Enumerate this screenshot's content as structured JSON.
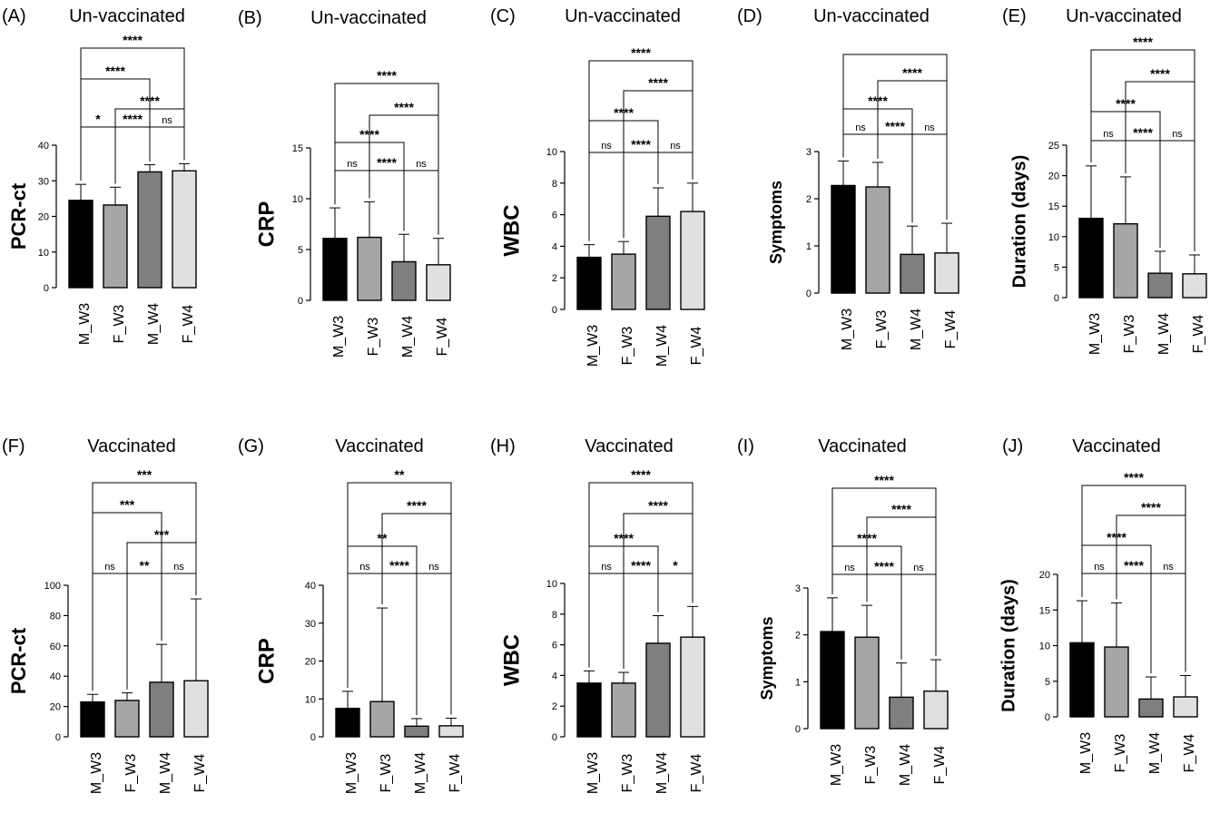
{
  "figure": {
    "bar_colors": [
      "#000000",
      "#a6a6a6",
      "#7f7f7f",
      "#e0e0e0"
    ]
  },
  "chart_data": [
    {
      "letter": "(A)",
      "title": "Un-vaccinated",
      "ylabel": "PCR-ct",
      "type": "bar",
      "categories": [
        "M_W3",
        "F_W3",
        "M_W4",
        "F_W4"
      ],
      "values": [
        24.5,
        23.2,
        32.5,
        32.8
      ],
      "errors": [
        4.5,
        5,
        2,
        2
      ],
      "yticks": [
        0,
        10,
        20,
        30,
        40
      ],
      "ylim": [
        0,
        40
      ],
      "comparisons": [
        {
          "from": 0,
          "to": 3,
          "label": "****"
        },
        {
          "from": 0,
          "to": 2,
          "label": "****"
        },
        {
          "from": 1,
          "to": 3,
          "label": "****"
        },
        {
          "from": 0,
          "to": 1,
          "label": "*"
        },
        {
          "from": 1,
          "to": 2,
          "label": "****"
        },
        {
          "from": 2,
          "to": 3,
          "label": "ns"
        }
      ]
    },
    {
      "letter": "(B)",
      "title": "Un-vaccinated",
      "ylabel": "CRP",
      "type": "bar",
      "categories": [
        "M_W3",
        "F_W3",
        "M_W4",
        "F_W4"
      ],
      "values": [
        6.1,
        6.2,
        3.8,
        3.5
      ],
      "errors": [
        3,
        3.5,
        2.7,
        2.6
      ],
      "yticks": [
        0,
        5,
        10,
        15
      ],
      "ylim": [
        0,
        15
      ],
      "comparisons": [
        {
          "from": 0,
          "to": 3,
          "label": "****"
        },
        {
          "from": 1,
          "to": 3,
          "label": "****"
        },
        {
          "from": 0,
          "to": 2,
          "label": "****"
        },
        {
          "from": 0,
          "to": 1,
          "label": "ns"
        },
        {
          "from": 1,
          "to": 2,
          "label": "****"
        },
        {
          "from": 2,
          "to": 3,
          "label": "ns"
        }
      ]
    },
    {
      "letter": "(C)",
      "title": "Un-vaccinated",
      "ylabel": "WBC",
      "type": "bar",
      "categories": [
        "M_W3",
        "F_W3",
        "M_W4",
        "F_W4"
      ],
      "values": [
        3.3,
        3.5,
        5.9,
        6.2
      ],
      "errors": [
        0.8,
        0.8,
        1.8,
        1.8
      ],
      "yticks": [
        0,
        2,
        4,
        6,
        8,
        10
      ],
      "ylim": [
        0,
        10
      ],
      "comparisons": [
        {
          "from": 0,
          "to": 3,
          "label": "****"
        },
        {
          "from": 1,
          "to": 3,
          "label": "****"
        },
        {
          "from": 0,
          "to": 2,
          "label": "****"
        },
        {
          "from": 0,
          "to": 1,
          "label": "ns"
        },
        {
          "from": 1,
          "to": 2,
          "label": "****"
        },
        {
          "from": 2,
          "to": 3,
          "label": "ns"
        }
      ]
    },
    {
      "letter": "(D)",
      "title": "Un-vaccinated",
      "ylabel": "Symptoms",
      "type": "bar",
      "categories": [
        "M_W3",
        "F_W3",
        "M_W4",
        "F_W4"
      ],
      "values": [
        2.28,
        2.25,
        0.82,
        0.85
      ],
      "errors": [
        0.52,
        0.52,
        0.6,
        0.63
      ],
      "yticks": [
        0,
        1,
        2,
        3
      ],
      "ylim": [
        0,
        3
      ],
      "comparisons": [
        {
          "from": 0,
          "to": 3,
          "label": ""
        },
        {
          "from": 1,
          "to": 3,
          "label": "****"
        },
        {
          "from": 0,
          "to": 2,
          "label": "****"
        },
        {
          "from": 0,
          "to": 1,
          "label": "ns"
        },
        {
          "from": 1,
          "to": 2,
          "label": "****"
        },
        {
          "from": 2,
          "to": 3,
          "label": "ns"
        }
      ]
    },
    {
      "letter": "(E)",
      "title": "Un-vaccinated",
      "ylabel": "Duration (days)",
      "type": "bar",
      "categories": [
        "M_W3",
        "F_W3",
        "M_W4",
        "F_W4"
      ],
      "values": [
        13,
        12.1,
        4,
        3.9
      ],
      "errors": [
        8.6,
        7.7,
        3.6,
        3.1
      ],
      "yticks": [
        0,
        5,
        10,
        15,
        20,
        25
      ],
      "ylim": [
        0,
        25
      ],
      "comparisons": [
        {
          "from": 0,
          "to": 3,
          "label": "****"
        },
        {
          "from": 1,
          "to": 3,
          "label": "****"
        },
        {
          "from": 0,
          "to": 2,
          "label": "****"
        },
        {
          "from": 0,
          "to": 1,
          "label": "ns"
        },
        {
          "from": 1,
          "to": 2,
          "label": "****"
        },
        {
          "from": 2,
          "to": 3,
          "label": "ns"
        }
      ]
    },
    {
      "letter": "(F)",
      "title": "Vaccinated",
      "ylabel": "PCR-ct",
      "type": "bar",
      "categories": [
        "M_W3",
        "F_W3",
        "M_W4",
        "F_W4"
      ],
      "values": [
        23,
        24,
        36,
        37
      ],
      "errors": [
        5,
        5,
        25,
        54
      ],
      "yticks": [
        0,
        20,
        40,
        60,
        80,
        100
      ],
      "ylim": [
        0,
        100
      ],
      "comparisons": [
        {
          "from": 0,
          "to": 3,
          "label": "***"
        },
        {
          "from": 0,
          "to": 2,
          "label": "***"
        },
        {
          "from": 1,
          "to": 3,
          "label": "***"
        },
        {
          "from": 0,
          "to": 1,
          "label": "ns"
        },
        {
          "from": 1,
          "to": 2,
          "label": "**"
        },
        {
          "from": 2,
          "to": 3,
          "label": "ns"
        }
      ]
    },
    {
      "letter": "(G)",
      "title": "Vaccinated",
      "ylabel": "CRP",
      "type": "bar",
      "categories": [
        "M_W3",
        "F_W3",
        "M_W4",
        "F_W4"
      ],
      "values": [
        7.5,
        9.3,
        2.8,
        2.9
      ],
      "errors": [
        4.5,
        24.7,
        2,
        2
      ],
      "yticks": [
        0,
        10,
        20,
        30,
        40
      ],
      "ylim": [
        0,
        40
      ],
      "comparisons": [
        {
          "from": 0,
          "to": 3,
          "label": "**"
        },
        {
          "from": 1,
          "to": 3,
          "label": "****"
        },
        {
          "from": 0,
          "to": 2,
          "label": "**"
        },
        {
          "from": 0,
          "to": 1,
          "label": "ns"
        },
        {
          "from": 1,
          "to": 2,
          "label": "****"
        },
        {
          "from": 2,
          "to": 3,
          "label": "ns"
        }
      ]
    },
    {
      "letter": "(H)",
      "title": "Vaccinated",
      "ylabel": "WBC",
      "type": "bar",
      "categories": [
        "M_W3",
        "F_W3",
        "M_W4",
        "F_W4"
      ],
      "values": [
        3.5,
        3.5,
        6.1,
        6.5
      ],
      "errors": [
        0.8,
        0.7,
        1.8,
        2
      ],
      "yticks": [
        0,
        2,
        4,
        6,
        8,
        10
      ],
      "ylim": [
        0,
        10
      ],
      "comparisons": [
        {
          "from": 0,
          "to": 3,
          "label": "****"
        },
        {
          "from": 1,
          "to": 3,
          "label": "****"
        },
        {
          "from": 0,
          "to": 2,
          "label": "****"
        },
        {
          "from": 0,
          "to": 1,
          "label": "ns"
        },
        {
          "from": 1,
          "to": 2,
          "label": "****"
        },
        {
          "from": 2,
          "to": 3,
          "label": "*"
        }
      ]
    },
    {
      "letter": "(I)",
      "title": "Vaccinated",
      "ylabel": "Symptoms",
      "type": "bar",
      "categories": [
        "M_W3",
        "F_W3",
        "M_W4",
        "F_W4"
      ],
      "values": [
        2.07,
        1.95,
        0.67,
        0.8
      ],
      "errors": [
        0.72,
        0.68,
        0.73,
        0.67
      ],
      "yticks": [
        0,
        1,
        2,
        3
      ],
      "ylim": [
        0,
        3
      ],
      "comparisons": [
        {
          "from": 0,
          "to": 3,
          "label": "****"
        },
        {
          "from": 1,
          "to": 3,
          "label": "****"
        },
        {
          "from": 0,
          "to": 2,
          "label": "****"
        },
        {
          "from": 0,
          "to": 1,
          "label": "ns"
        },
        {
          "from": 1,
          "to": 2,
          "label": "****"
        },
        {
          "from": 2,
          "to": 3,
          "label": "ns"
        }
      ]
    },
    {
      "letter": "(J)",
      "title": "Vaccinated",
      "ylabel": "Duration (days)",
      "type": "bar",
      "categories": [
        "M_W3",
        "F_W3",
        "M_W4",
        "F_W4"
      ],
      "values": [
        10.4,
        9.8,
        2.5,
        2.8
      ],
      "errors": [
        5.9,
        6.2,
        3.1,
        3
      ],
      "yticks": [
        0,
        5,
        10,
        15,
        20
      ],
      "ylim": [
        0,
        20
      ],
      "comparisons": [
        {
          "from": 0,
          "to": 3,
          "label": "****"
        },
        {
          "from": 1,
          "to": 3,
          "label": "****"
        },
        {
          "from": 0,
          "to": 2,
          "label": "****"
        },
        {
          "from": 0,
          "to": 1,
          "label": "ns"
        },
        {
          "from": 1,
          "to": 2,
          "label": "****"
        },
        {
          "from": 2,
          "to": 3,
          "label": "ns"
        }
      ]
    }
  ]
}
